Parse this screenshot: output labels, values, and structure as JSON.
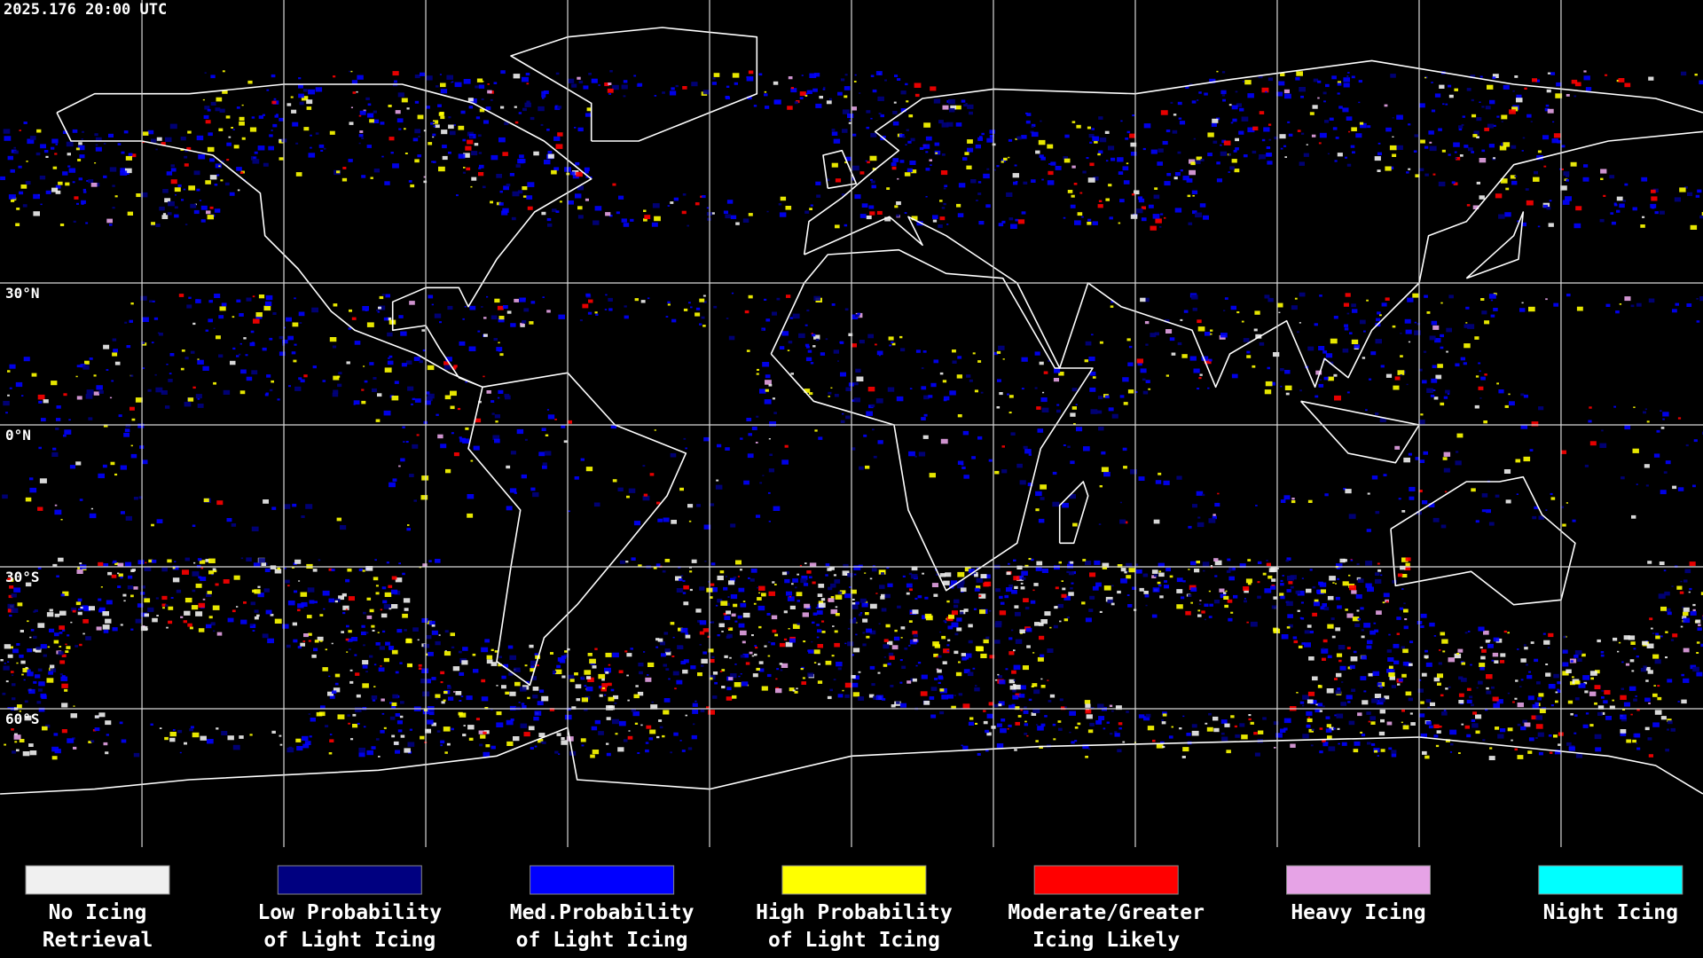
{
  "header": {
    "timestamp": "2025.176 20:00 UTC"
  },
  "map": {
    "latitude_labels": [
      "30°N",
      "0°N",
      "30°S",
      "60°S"
    ]
  },
  "legend": {
    "items": [
      {
        "lines": [
          "No Icing",
          "Retrieval"
        ],
        "color": "#f0f0f0"
      },
      {
        "lines": [
          "Low Probability",
          "of Light Icing"
        ],
        "color": "#000080"
      },
      {
        "lines": [
          "Med.Probability",
          "of Light Icing"
        ],
        "color": "#0000ff"
      },
      {
        "lines": [
          "High Probability",
          "of Light Icing"
        ],
        "color": "#ffff00"
      },
      {
        "lines": [
          "Moderate/Greater",
          "Icing Likely"
        ],
        "color": "#ff0000"
      },
      {
        "lines": [
          "Heavy Icing"
        ],
        "color": "#e6a3e6"
      },
      {
        "lines": [
          "Night Icing"
        ],
        "color": "#00ffff"
      }
    ]
  }
}
